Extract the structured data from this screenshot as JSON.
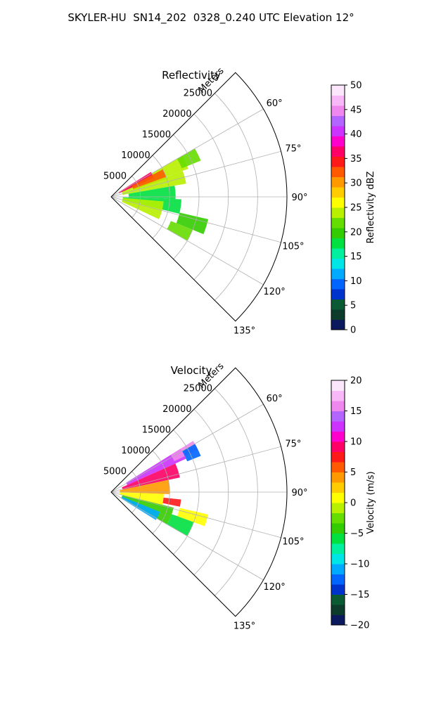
{
  "figure": {
    "title": "SKYLER-HU  SN14_202  0328_0.240 UTC Elevation 12°"
  },
  "chart_data": [
    {
      "type": "polar-sector",
      "title": "Reflectivity",
      "range_axis_label": "Meters",
      "range_ticks": [
        5000,
        10000,
        15000,
        20000,
        25000
      ],
      "range_tick_labels": [
        "5000",
        "10000",
        "15000",
        "20000",
        "25000"
      ],
      "rmax": 30000,
      "azimuth_range": [
        45,
        135
      ],
      "azimuth_ticks": [
        60,
        75,
        90,
        105,
        120,
        135
      ],
      "azimuth_tick_labels": [
        "60°",
        "75°",
        "90°",
        "105°",
        "120°",
        "135°"
      ],
      "grid": true,
      "colorbar": {
        "label": "Reflectivity dBZ",
        "vmin": 0,
        "vmax": 50,
        "ticks": [
          0,
          5,
          10,
          15,
          20,
          25,
          30,
          35,
          40,
          45,
          50
        ],
        "tick_labels": [
          "0",
          "5",
          "10",
          "15",
          "20",
          "25",
          "30",
          "35",
          "40",
          "45",
          "50"
        ],
        "colors": [
          "#0b1a5c",
          "#0d3b2c",
          "#0a5a34",
          "#0033cc",
          "#0066ff",
          "#00aaff",
          "#00e5e5",
          "#00f0a0",
          "#00e040",
          "#33cc00",
          "#66dd00",
          "#b8f000",
          "#ffff00",
          "#ffcc00",
          "#ff9900",
          "#ff5a00",
          "#ff1a1a",
          "#ff0066",
          "#ff00cc",
          "#cc33ff",
          "#b366ff",
          "#ee88ee",
          "#f8b8f8",
          "#fce6fc"
        ]
      },
      "echo_regions": [
        {
          "az": [
            60,
            70
          ],
          "r": [
            2000,
            14000
          ],
          "value": 24
        },
        {
          "az": [
            58,
            66
          ],
          "r": [
            1500,
            8000
          ],
          "value": 36
        },
        {
          "az": [
            62,
            72
          ],
          "r": [
            4000,
            10000
          ],
          "value": 33
        },
        {
          "az": [
            60,
            68
          ],
          "r": [
            13000,
            16500
          ],
          "value": 21
        },
        {
          "az": [
            70,
            80
          ],
          "r": [
            2000,
            13000
          ],
          "value": 23
        },
        {
          "az": [
            80,
            92
          ],
          "r": [
            3000,
            11000
          ],
          "value": 17
        },
        {
          "az": [
            92,
            104
          ],
          "r": [
            2000,
            12000
          ],
          "value": 18
        },
        {
          "az": [
            95,
            115
          ],
          "r": [
            2000,
            9000
          ],
          "value": 24
        },
        {
          "az": [
            103,
            112
          ],
          "r": [
            12000,
            17000
          ],
          "value": 19
        },
        {
          "az": [
            112,
            120
          ],
          "r": [
            11000,
            15000
          ],
          "value": 21
        }
      ]
    },
    {
      "type": "polar-sector",
      "title": "Velocity",
      "range_axis_label": "Meters",
      "range_ticks": [
        5000,
        10000,
        15000,
        20000,
        25000
      ],
      "range_tick_labels": [
        "5000",
        "10000",
        "15000",
        "20000",
        "25000"
      ],
      "rmax": 30000,
      "azimuth_range": [
        45,
        135
      ],
      "azimuth_ticks": [
        60,
        75,
        90,
        105,
        120,
        135
      ],
      "azimuth_tick_labels": [
        "60°",
        "75°",
        "90°",
        "105°",
        "120°",
        "135°"
      ],
      "grid": true,
      "colorbar": {
        "label": "Velocity (m/s)",
        "vmin": -20,
        "vmax": 20,
        "ticks": [
          -20,
          -15,
          -10,
          -5,
          0,
          5,
          10,
          15,
          20
        ],
        "tick_labels": [
          "−20",
          "−15",
          "−10",
          "−5",
          "0",
          "5",
          "10",
          "15",
          "20"
        ],
        "colors": [
          "#0b1a5c",
          "#0d3b2c",
          "#0a5a34",
          "#0033cc",
          "#0066ff",
          "#00aaff",
          "#00e5e5",
          "#00f0a0",
          "#00e040",
          "#33cc00",
          "#66dd00",
          "#b8f000",
          "#ffff00",
          "#ffcc00",
          "#ff9900",
          "#ff5a00",
          "#ff1a1a",
          "#ff0066",
          "#ff00cc",
          "#cc33ff",
          "#b366ff",
          "#ee88ee",
          "#f8b8f8",
          "#fce6fc"
        ]
      },
      "echo_regions": [
        {
          "az": [
            58,
            66
          ],
          "r": [
            3000,
            14000
          ],
          "value": 13
        },
        {
          "az": [
            58,
            64
          ],
          "r": [
            12000,
            16500
          ],
          "value": 16
        },
        {
          "az": [
            60,
            68
          ],
          "r": [
            14000,
            16500
          ],
          "value": -13
        },
        {
          "az": [
            66,
            78
          ],
          "r": [
            2000,
            12000
          ],
          "value": 9
        },
        {
          "az": [
            78,
            92
          ],
          "r": [
            1500,
            10000
          ],
          "value": 4
        },
        {
          "az": [
            92,
            104
          ],
          "r": [
            1500,
            9000
          ],
          "value": 1
        },
        {
          "az": [
            96,
            102
          ],
          "r": [
            9000,
            12000
          ],
          "value": 7
        },
        {
          "az": [
            104,
            120
          ],
          "r": [
            2000,
            11000
          ],
          "value": -5
        },
        {
          "az": [
            112,
            122
          ],
          "r": [
            2000,
            9000
          ],
          "value": -11
        },
        {
          "az": [
            103,
            110
          ],
          "r": [
            12000,
            17000
          ],
          "value": 0
        },
        {
          "az": [
            110,
            120
          ],
          "r": [
            11000,
            15000
          ],
          "value": -6
        }
      ]
    }
  ]
}
